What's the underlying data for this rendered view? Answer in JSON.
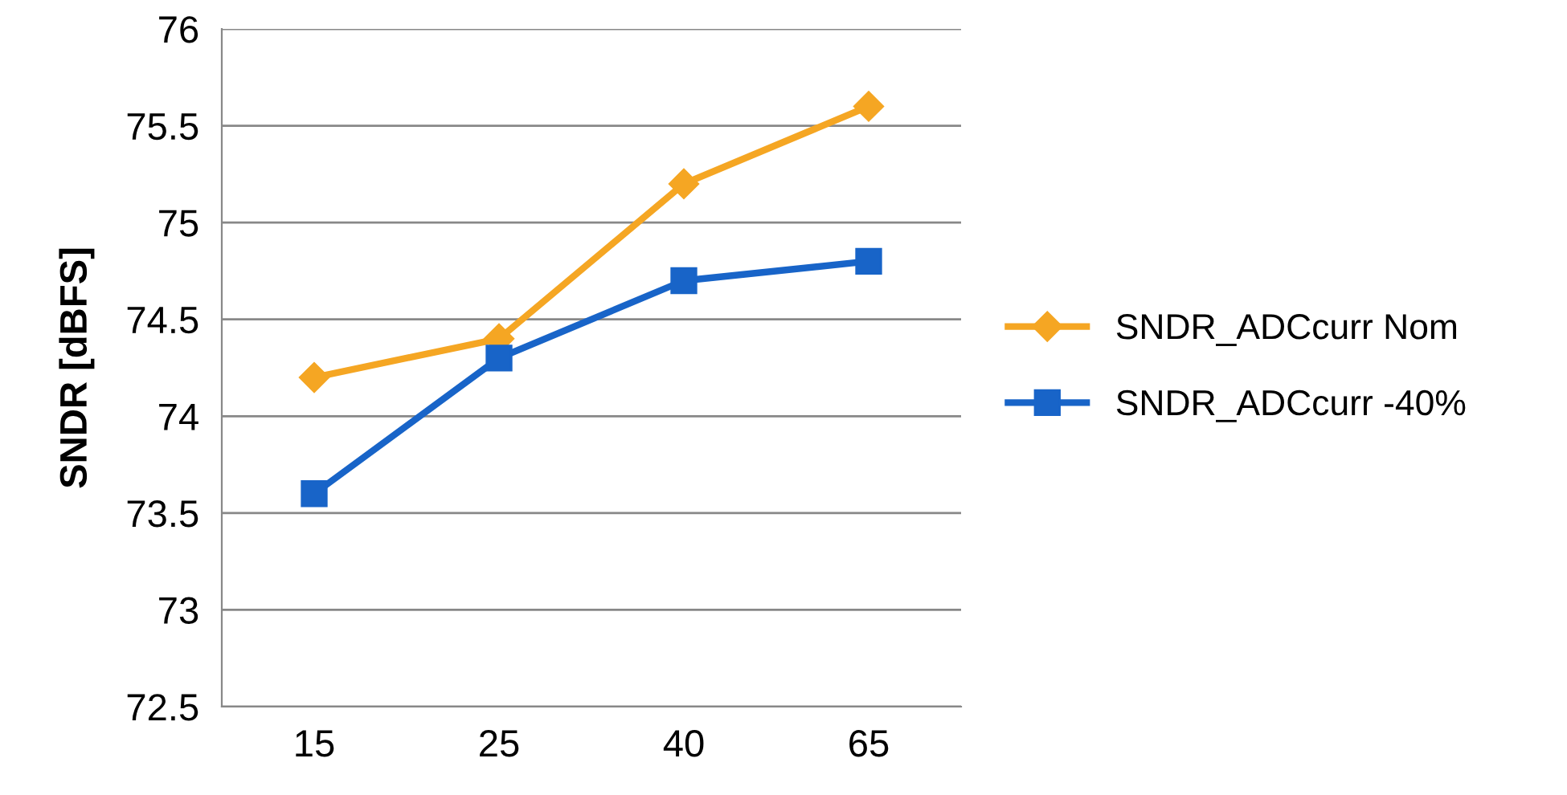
{
  "chart_data": {
    "type": "line",
    "ylabel": "SNDR [dBFS]",
    "categories": [
      "15",
      "25",
      "40",
      "65"
    ],
    "series": [
      {
        "name": "SNDR_ADCcurr Nom",
        "color": "#f5a623",
        "marker": "diamond",
        "values": [
          74.2,
          74.4,
          75.2,
          75.6
        ]
      },
      {
        "name": "SNDR_ADCcurr -40%",
        "color": "#1864c8",
        "marker": "square",
        "values": [
          73.6,
          74.3,
          74.7,
          74.8
        ]
      }
    ],
    "ylim": [
      72.5,
      76
    ],
    "yticks": [
      72.5,
      73,
      73.5,
      74,
      74.5,
      75,
      75.5,
      76
    ],
    "grid": "y",
    "legend": "right",
    "line_style": "solid"
  }
}
